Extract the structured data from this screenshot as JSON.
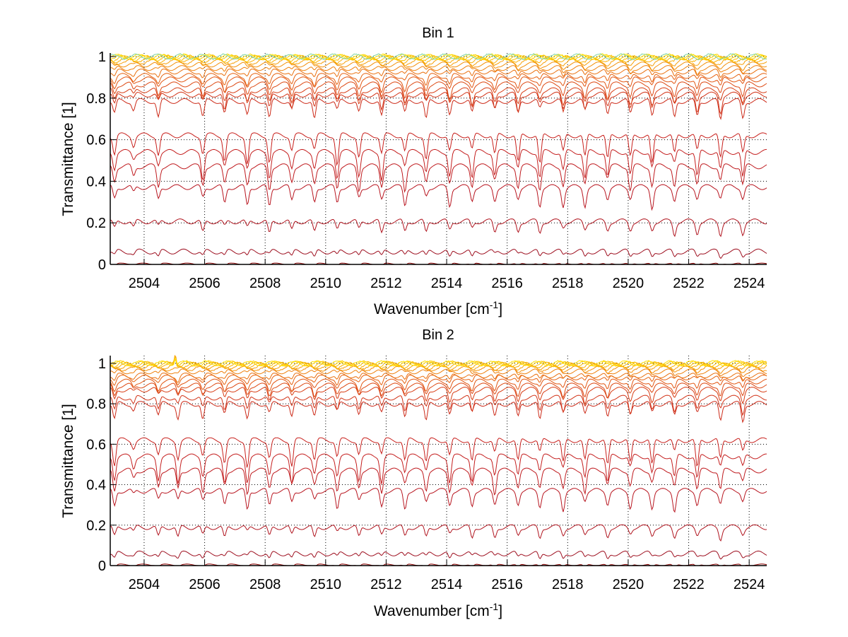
{
  "figure": {
    "background": "#ffffff"
  },
  "chart_data": [
    {
      "type": "line",
      "title": "Bin 1",
      "xlabel": "Wavenumber [cm",
      "xlabel_superscript": "-1",
      "xlabel_suffix": "]",
      "ylabel": "Transmittance [1]",
      "xlim": [
        2502.88,
        2524.58
      ],
      "ylim": [
        0,
        1.017
      ],
      "grid": true,
      "grid_style": "dotted",
      "x_ticks": [
        2504,
        2506,
        2508,
        2510,
        2512,
        2514,
        2516,
        2518,
        2520,
        2522,
        2524
      ],
      "x_tick_labels": [
        "2504",
        "2506",
        "2508",
        "2510",
        "2512",
        "2514",
        "2516",
        "2518",
        "2520",
        "2522",
        "2524"
      ],
      "y_ticks": [
        0,
        0.2,
        0.4,
        0.6,
        0.8,
        1
      ],
      "y_tick_labels": [
        "0",
        "0.2",
        "0.4",
        "0.6",
        "0.8",
        "1"
      ],
      "absorption_lines_cm1": [
        2503.02,
        2503.65,
        2504.47,
        2505.94,
        2506.66,
        2507.41,
        2508.14,
        2508.88,
        2509.63,
        2510.38,
        2511.1,
        2511.85,
        2512.62,
        2513.32,
        2514.1,
        2514.84,
        2515.59,
        2516.36,
        2517.08,
        2517.85,
        2518.57,
        2519.32,
        2520.07,
        2520.79,
        2521.53,
        2522.28,
        2523.05,
        2523.79
      ],
      "series_baselines": [
        0.003,
        0.062,
        0.207,
        0.372,
        0.472,
        0.541,
        0.621,
        0.786,
        0.817,
        0.838,
        0.866,
        0.89,
        0.907,
        0.928,
        0.945,
        0.962,
        0.976,
        0.986,
        0.993,
        0.997,
        0.999,
        1.0
      ],
      "series_colors": [
        "#8b0000",
        "#9e1020",
        "#b0141e",
        "#b81620",
        "#bf1a1e",
        "#c41e1e",
        "#c8201c",
        "#cc2a18",
        "#d23418",
        "#d83e16",
        "#dd4a14",
        "#e25612",
        "#e66210",
        "#ea700e",
        "#ee800c",
        "#f2900a",
        "#f6a008",
        "#f8b006",
        "#fac004",
        "#fcd002",
        "#ffe000",
        "#7fd4a0"
      ],
      "spike": null
    },
    {
      "type": "line",
      "title": "Bin 2",
      "xlabel": "Wavenumber [cm",
      "xlabel_superscript": "-1",
      "xlabel_suffix": "]",
      "ylabel": "Transmittance [1]",
      "xlim": [
        2502.88,
        2524.58
      ],
      "ylim": [
        0,
        1.038
      ],
      "grid": true,
      "grid_style": "dotted",
      "x_ticks": [
        2504,
        2506,
        2508,
        2510,
        2512,
        2514,
        2516,
        2518,
        2520,
        2522,
        2524
      ],
      "x_tick_labels": [
        "2504",
        "2506",
        "2508",
        "2510",
        "2512",
        "2514",
        "2516",
        "2518",
        "2520",
        "2522",
        "2524"
      ],
      "y_ticks": [
        0,
        0.2,
        0.4,
        0.6,
        0.8,
        1
      ],
      "y_tick_labels": [
        "0",
        "0.2",
        "0.4",
        "0.6",
        "0.8",
        "1"
      ],
      "absorption_lines_cm1": [
        2503.02,
        2503.65,
        2504.47,
        2505.12,
        2505.94,
        2506.66,
        2507.41,
        2508.14,
        2508.88,
        2509.63,
        2510.38,
        2511.1,
        2511.85,
        2512.62,
        2513.32,
        2514.1,
        2514.84,
        2515.59,
        2516.36,
        2517.08,
        2517.85,
        2518.57,
        2519.32,
        2520.07,
        2520.79,
        2521.53,
        2522.28,
        2523.05,
        2523.79
      ],
      "series_baselines": [
        0.004,
        0.06,
        0.19,
        0.37,
        0.47,
        0.54,
        0.62,
        0.8,
        0.83,
        0.87,
        0.89,
        0.91,
        0.93,
        0.94,
        0.96,
        0.975,
        0.985,
        0.992,
        0.996,
        0.999,
        1.0
      ],
      "series_colors": [
        "#8b0000",
        "#9e1020",
        "#b0141e",
        "#b81620",
        "#bf1a1e",
        "#c41e1e",
        "#c8201c",
        "#cc2a18",
        "#d23418",
        "#d83e16",
        "#dd4a14",
        "#e25612",
        "#e66210",
        "#ea700e",
        "#ee800c",
        "#f2900a",
        "#f6a008",
        "#f8b006",
        "#fac004",
        "#fcd002",
        "#ffe000"
      ],
      "spike": {
        "x": 2505.03,
        "y": 1.035
      }
    }
  ]
}
